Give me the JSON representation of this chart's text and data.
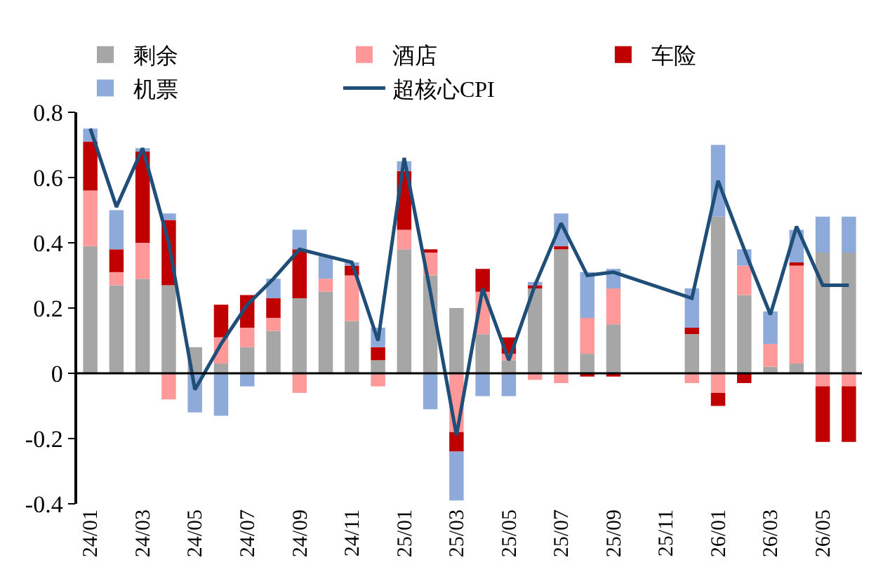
{
  "chart_data": {
    "type": "bar",
    "stacked": true,
    "categories": [
      "24/01",
      null,
      "24/03",
      null,
      "24/05",
      null,
      "24/07",
      null,
      "24/09",
      null,
      "24/11",
      null,
      "25/01",
      null,
      "25/03",
      null,
      "25/05",
      null,
      "25/07",
      null,
      "25/09",
      null,
      "25/11",
      null,
      "26/01",
      null,
      "26/03",
      null,
      "26/05",
      null
    ],
    "series": [
      {
        "name": "剩余",
        "color": "#a6a6a6",
        "values": [
          0.39,
          0.27,
          0.29,
          0.27,
          0.08,
          0.03,
          0.08,
          0.13,
          0.23,
          0.25,
          0.16,
          0.04,
          0.38,
          0.3,
          0.2,
          0.12,
          0.04,
          0.26,
          0.38,
          0.06,
          0.15,
          null,
          null,
          0.12,
          0.48,
          0.24,
          0.02,
          0.03,
          0.37,
          0.37
        ]
      },
      {
        "name": "酒店",
        "color": "#ff9999",
        "values": [
          0.17,
          0.04,
          0.11,
          -0.08,
          null,
          0.08,
          0.06,
          0.04,
          -0.06,
          0.04,
          0.14,
          -0.04,
          0.06,
          0.07,
          -0.18,
          0.13,
          0.02,
          -0.02,
          -0.03,
          0.11,
          0.11,
          null,
          null,
          -0.03,
          -0.06,
          0.09,
          0.07,
          0.3,
          -0.04,
          -0.04
        ]
      },
      {
        "name": "车险",
        "color": "#c00000",
        "values": [
          0.15,
          0.07,
          0.28,
          0.2,
          null,
          0.1,
          0.1,
          0.06,
          0.15,
          null,
          0.03,
          0.04,
          0.18,
          0.01,
          -0.06,
          0.07,
          0.05,
          0.01,
          0.01,
          -0.01,
          -0.01,
          null,
          null,
          0.02,
          -0.04,
          -0.03,
          null,
          0.01,
          -0.17,
          -0.17
        ]
      },
      {
        "name": "机票",
        "color": "#8eaadb",
        "values": [
          0.04,
          0.12,
          0.01,
          0.02,
          -0.12,
          -0.13,
          -0.04,
          0.06,
          0.06,
          0.07,
          0.01,
          0.06,
          0.03,
          -0.11,
          -0.15,
          -0.07,
          -0.07,
          0.01,
          0.1,
          0.14,
          0.06,
          null,
          null,
          0.12,
          0.22,
          0.05,
          0.1,
          0.1,
          0.11,
          0.11
        ]
      },
      {
        "name": "超核心CPI",
        "type": "line",
        "color": "#1f4e79",
        "marker": "none",
        "line_style": "solid",
        "values": [
          0.75,
          0.51,
          0.69,
          0.4,
          -0.05,
          0.09,
          0.21,
          0.29,
          0.38,
          0.36,
          0.34,
          0.1,
          0.66,
          0.25,
          -0.19,
          0.26,
          0.04,
          0.27,
          0.46,
          0.3,
          0.31,
          null,
          null,
          0.23,
          0.59,
          0.38,
          0.18,
          0.45,
          0.27,
          0.27
        ]
      }
    ],
    "ylim": [
      -0.4,
      0.8
    ],
    "yticks": [
      {
        "value": -0.4,
        "label": "-0.4"
      },
      {
        "value": -0.2,
        "label": "-0.2"
      },
      0,
      {
        "value": 0.2,
        "label": "0.2"
      },
      {
        "value": 0.4,
        "label": "0.4"
      },
      {
        "value": 0.6,
        "label": "0.6"
      },
      0.8
    ],
    "legend": "top"
  }
}
